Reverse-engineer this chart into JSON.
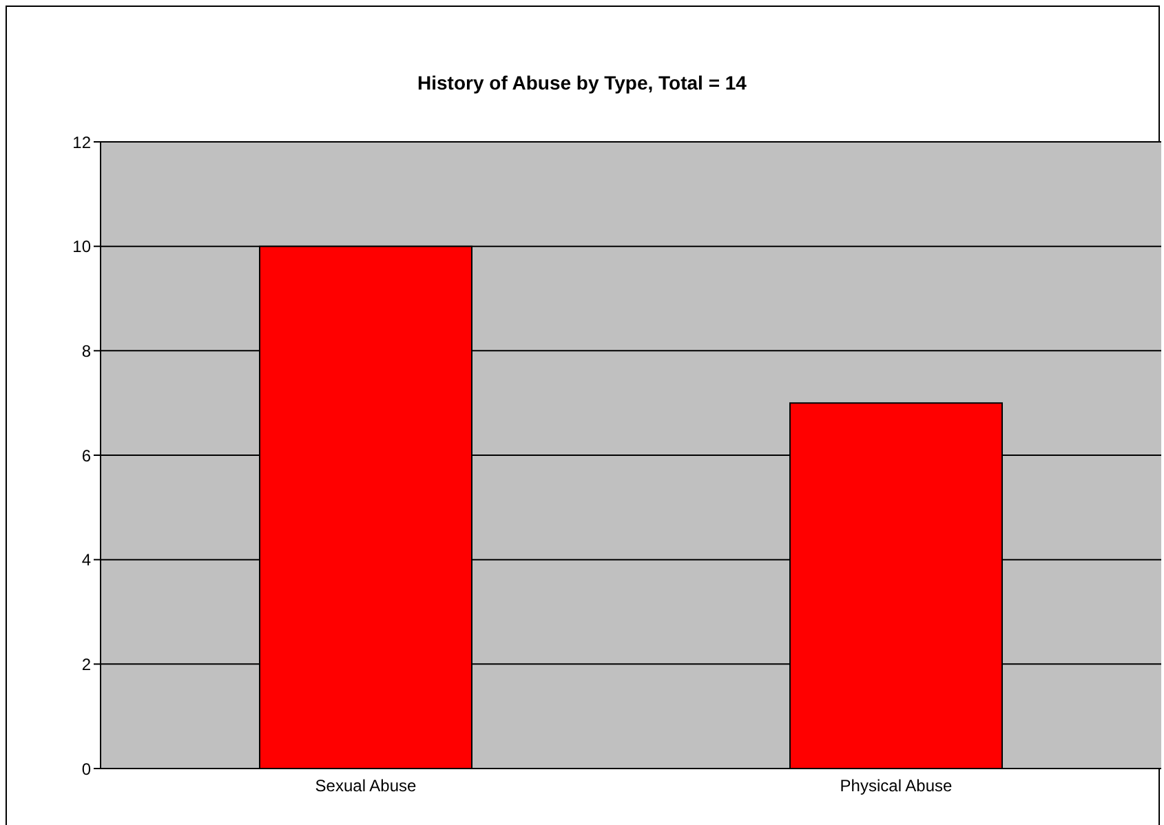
{
  "chart_data": {
    "type": "bar",
    "title": "History of Abuse by Type, Total = 14",
    "categories": [
      "Sexual Abuse",
      "Physical Abuse"
    ],
    "values": [
      10,
      7
    ],
    "color": "#ff0000",
    "ylim": [
      0,
      12
    ],
    "yticks": [
      0,
      2,
      4,
      6,
      8,
      10,
      12
    ],
    "grid": "y"
  }
}
